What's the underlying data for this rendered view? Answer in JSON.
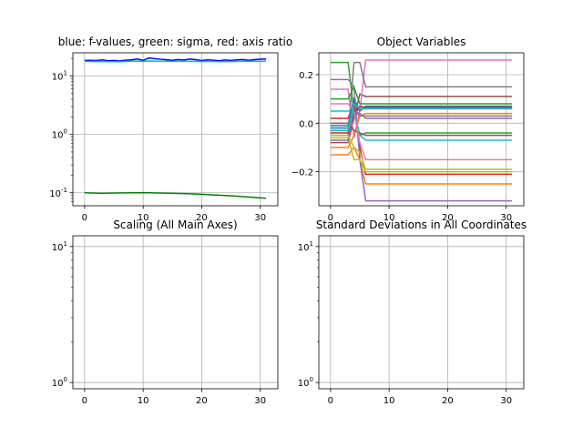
{
  "chart_data": [
    {
      "type": "line",
      "title": "blue: f-values, green: sigma, red: axis ratio",
      "xlim": [
        -2,
        33
      ],
      "ylim": [
        0.06,
        25
      ],
      "yscale": "log",
      "xticks": [
        0,
        10,
        20,
        30
      ],
      "xtick_labels": [
        "0",
        "10",
        "20",
        "30"
      ],
      "yticks": [
        0.1,
        1,
        10
      ],
      "ytick_labels": [
        "10^-1",
        "10^0",
        "10^1"
      ],
      "grid": true,
      "series": [
        {
          "color": "#0000ff",
          "x": [
            0,
            1,
            2,
            3,
            4,
            5,
            6,
            7,
            8,
            9,
            10,
            11,
            12,
            13,
            14,
            15,
            16,
            17,
            18,
            19,
            20,
            21,
            22,
            23,
            24,
            25,
            26,
            27,
            28,
            29,
            30,
            31
          ],
          "y": [
            18.5,
            18.6,
            18.4,
            18.9,
            18.3,
            18.5,
            18.1,
            18.7,
            18.9,
            19.6,
            18.5,
            20.4,
            19.8,
            19.4,
            19.0,
            18.6,
            19.2,
            18.8,
            19.6,
            19.0,
            18.4,
            18.9,
            18.7,
            18.3,
            18.8,
            18.5,
            18.9,
            19.2,
            18.6,
            19.1,
            19.4,
            19.5
          ]
        },
        {
          "color": "#00bfbf",
          "x": [
            0,
            1,
            2,
            3,
            4,
            5,
            6,
            7,
            8,
            9,
            10,
            11,
            12,
            13,
            14,
            15,
            16,
            17,
            18,
            19,
            20,
            21,
            22,
            23,
            24,
            25,
            26,
            27,
            28,
            29,
            30,
            31
          ],
          "y": [
            17.8,
            17.8,
            17.7,
            17.8,
            17.6,
            17.7,
            17.5,
            17.8,
            17.9,
            18.0,
            17.8,
            18.1,
            18.0,
            17.9,
            17.9,
            17.8,
            17.9,
            17.8,
            17.9,
            17.8,
            17.7,
            17.8,
            17.8,
            17.6,
            17.8,
            17.7,
            17.8,
            17.9,
            17.8,
            17.9,
            17.9,
            17.9
          ]
        },
        {
          "color": "#008000",
          "x": [
            0,
            1,
            2,
            3,
            4,
            5,
            6,
            7,
            8,
            9,
            10,
            11,
            12,
            13,
            14,
            15,
            16,
            17,
            18,
            19,
            20,
            21,
            22,
            23,
            24,
            25,
            26,
            27,
            28,
            29,
            30,
            31
          ],
          "y": [
            0.1,
            0.0995,
            0.0988,
            0.0985,
            0.0987,
            0.0992,
            0.0995,
            0.0998,
            0.0999,
            0.1,
            0.1,
            0.0999,
            0.0996,
            0.0992,
            0.0987,
            0.0981,
            0.0975,
            0.0968,
            0.096,
            0.0951,
            0.0942,
            0.0932,
            0.0921,
            0.091,
            0.0898,
            0.0886,
            0.0873,
            0.086,
            0.0846,
            0.0832,
            0.0818,
            0.0805
          ]
        }
      ]
    },
    {
      "type": "line",
      "title": "Object Variables",
      "xlim": [
        -2,
        33
      ],
      "ylim": [
        -0.34,
        0.29
      ],
      "xticks": [
        0,
        10,
        20,
        30
      ],
      "xtick_labels": [
        "0",
        "10",
        "20",
        "30"
      ],
      "yticks": [
        -0.2,
        0.0,
        0.2
      ],
      "ytick_labels": [
        "−0.2",
        "0.0",
        "0.2"
      ],
      "grid": true,
      "series": [
        {
          "color": "#1f77b4",
          "points": [
            [
              0,
              -0.02
            ],
            [
              3,
              -0.02
            ],
            [
              4,
              0.05
            ],
            [
              5,
              0.07
            ],
            [
              6,
              0.06
            ],
            [
              31,
              0.06
            ]
          ]
        },
        {
          "color": "#ff7f0e",
          "points": [
            [
              0,
              -0.13
            ],
            [
              3,
              -0.13
            ],
            [
              4,
              -0.1
            ],
            [
              5,
              -0.15
            ],
            [
              6,
              -0.25
            ],
            [
              31,
              -0.25
            ]
          ]
        },
        {
          "color": "#2ca02c",
          "points": [
            [
              0,
              0.25
            ],
            [
              3,
              0.25
            ],
            [
              4,
              0.05
            ],
            [
              5,
              -0.05
            ],
            [
              6,
              -0.04
            ],
            [
              31,
              -0.04
            ]
          ]
        },
        {
          "color": "#d62728",
          "points": [
            [
              0,
              0.02
            ],
            [
              3,
              0.02
            ],
            [
              4,
              0.09
            ],
            [
              5,
              -0.1
            ],
            [
              6,
              -0.21
            ],
            [
              31,
              -0.21
            ]
          ]
        },
        {
          "color": "#9467bd",
          "points": [
            [
              0,
              0.18
            ],
            [
              3,
              0.18
            ],
            [
              4,
              0.15
            ],
            [
              5,
              -0.15
            ],
            [
              6,
              -0.32
            ],
            [
              31,
              -0.32
            ]
          ]
        },
        {
          "color": "#8c564b",
          "points": [
            [
              0,
              -0.08
            ],
            [
              3,
              -0.08
            ],
            [
              4,
              0.02
            ],
            [
              5,
              0.12
            ],
            [
              6,
              0.11
            ],
            [
              31,
              0.11
            ]
          ]
        },
        {
          "color": "#e377c2",
          "points": [
            [
              0,
              0.14
            ],
            [
              3,
              0.14
            ],
            [
              4,
              -0.06
            ],
            [
              5,
              0.05
            ],
            [
              6,
              0.26
            ],
            [
              31,
              0.26
            ]
          ]
        },
        {
          "color": "#7f7f7f",
          "points": [
            [
              0,
              -0.05
            ],
            [
              3,
              -0.05
            ],
            [
              4,
              0.25
            ],
            [
              5,
              0.25
            ],
            [
              6,
              0.15
            ],
            [
              31,
              0.15
            ]
          ]
        },
        {
          "color": "#bcbd22",
          "points": [
            [
              0,
              -0.06
            ],
            [
              3,
              -0.06
            ],
            [
              4,
              -0.15
            ],
            [
              5,
              -0.15
            ],
            [
              6,
              -0.2
            ],
            [
              31,
              -0.2
            ]
          ]
        },
        {
          "color": "#17becf",
          "points": [
            [
              0,
              0.05
            ],
            [
              3,
              0.05
            ],
            [
              4,
              0.05
            ],
            [
              5,
              -0.05
            ],
            [
              6,
              -0.07
            ],
            [
              31,
              -0.07
            ]
          ]
        },
        {
          "color": "#1f77b4",
          "points": [
            [
              0,
              -0.01
            ],
            [
              3,
              -0.01
            ],
            [
              4,
              0.1
            ],
            [
              5,
              0.05
            ],
            [
              6,
              0.07
            ],
            [
              31,
              0.07
            ]
          ]
        },
        {
          "color": "#ff7f0e",
          "points": [
            [
              0,
              -0.1
            ],
            [
              3,
              -0.1
            ],
            [
              4,
              -0.05
            ],
            [
              5,
              0.03
            ],
            [
              6,
              0.04
            ],
            [
              31,
              0.04
            ]
          ]
        },
        {
          "color": "#2ca02c",
          "points": [
            [
              0,
              0.1
            ],
            [
              3,
              0.1
            ],
            [
              4,
              0.15
            ],
            [
              5,
              0.08
            ],
            [
              6,
              0.08
            ],
            [
              31,
              0.08
            ]
          ]
        },
        {
          "color": "#d62728",
          "points": [
            [
              0,
              -0.04
            ],
            [
              3,
              -0.04
            ],
            [
              4,
              0.03
            ],
            [
              5,
              0.07
            ],
            [
              6,
              0.065
            ],
            [
              31,
              0.065
            ]
          ]
        },
        {
          "color": "#9467bd",
          "points": [
            [
              0,
              -0.07
            ],
            [
              3,
              -0.07
            ],
            [
              4,
              0.05
            ],
            [
              5,
              0.04
            ],
            [
              6,
              0.02
            ],
            [
              31,
              0.02
            ]
          ]
        },
        {
          "color": "#8c564b",
          "points": [
            [
              0,
              0.0
            ],
            [
              3,
              0.0
            ],
            [
              4,
              -0.03
            ],
            [
              5,
              -0.04
            ],
            [
              6,
              -0.05
            ],
            [
              31,
              -0.05
            ]
          ]
        },
        {
          "color": "#e377c2",
          "points": [
            [
              0,
              0.08
            ],
            [
              3,
              0.08
            ],
            [
              4,
              0.05
            ],
            [
              5,
              -0.08
            ],
            [
              6,
              -0.15
            ],
            [
              31,
              -0.15
            ]
          ]
        },
        {
          "color": "#7f7f7f",
          "points": [
            [
              0,
              -0.03
            ],
            [
              3,
              -0.03
            ],
            [
              4,
              0.05
            ],
            [
              5,
              0.03
            ],
            [
              6,
              0.03
            ],
            [
              31,
              0.03
            ]
          ]
        },
        {
          "color": "#bcbd22",
          "points": [
            [
              0,
              -0.05
            ],
            [
              3,
              -0.05
            ],
            [
              4,
              -0.1
            ],
            [
              5,
              -0.12
            ],
            [
              6,
              -0.19
            ],
            [
              31,
              -0.19
            ]
          ]
        },
        {
          "color": "#17becf",
          "points": [
            [
              0,
              -0.03
            ],
            [
              3,
              -0.03
            ],
            [
              4,
              0.08
            ],
            [
              5,
              0.06
            ],
            [
              6,
              0.06
            ],
            [
              31,
              0.06
            ]
          ]
        }
      ]
    },
    {
      "type": "line",
      "title": "Scaling (All Main Axes)",
      "xlim": [
        -2,
        33
      ],
      "ylim": [
        0.9,
        12
      ],
      "yscale": "log",
      "xticks": [
        0,
        10,
        20,
        30
      ],
      "xtick_labels": [
        "0",
        "10",
        "20",
        "30"
      ],
      "yticks": [
        1,
        10
      ],
      "ytick_labels": [
        "10^0",
        "10^1"
      ],
      "grid": true,
      "series": []
    },
    {
      "type": "line",
      "title": "Standard Deviations in All Coordinates",
      "xlim": [
        -2,
        33
      ],
      "ylim": [
        0.9,
        12
      ],
      "yscale": "log",
      "xticks": [
        0,
        10,
        20,
        30
      ],
      "xtick_labels": [
        "0",
        "10",
        "20",
        "30"
      ],
      "yticks": [
        1,
        10
      ],
      "ytick_labels": [
        "10^0",
        "10^1"
      ],
      "grid": true,
      "series": []
    }
  ]
}
